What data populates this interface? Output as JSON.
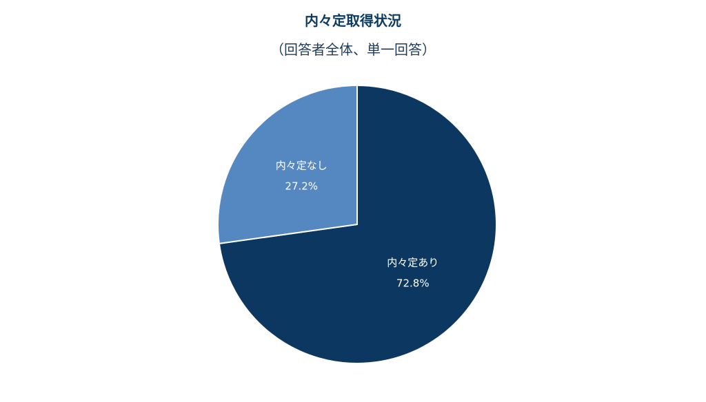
{
  "chart_data": {
    "type": "pie",
    "title": "内々定取得状況",
    "subtitle": "（回答者全体、単一回答）",
    "slices": [
      {
        "label": "内々定あり",
        "value": 72.8,
        "value_label": "72.8%",
        "color": "#0b3760"
      },
      {
        "label": "内々定なし",
        "value": 27.2,
        "value_label": "27.2%",
        "color": "#5587c1"
      }
    ],
    "start_angle": "12 o'clock",
    "direction": "clockwise",
    "legend": "none"
  }
}
